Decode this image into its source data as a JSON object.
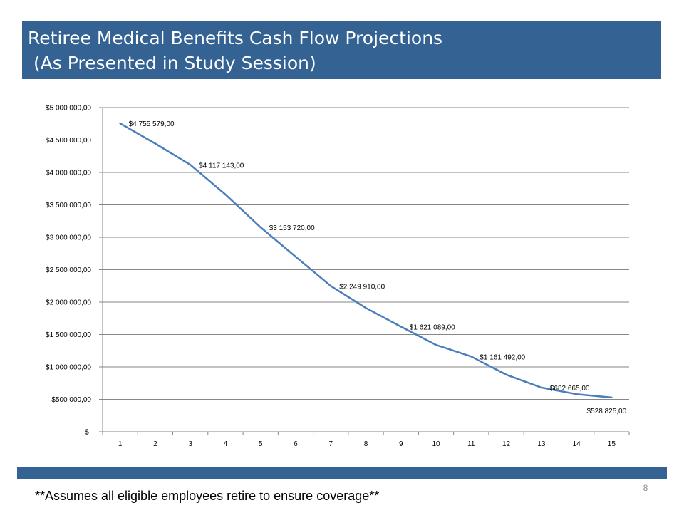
{
  "slide": {
    "title_line1": "Retiree Medical Benefits Cash Flow Projections",
    "title_line2": " (As Presented in Study Session)",
    "footnote": "**Assumes all eligible employees retire to ensure coverage**",
    "page_number": "8"
  },
  "colors": {
    "title_bar": "#346393",
    "line": "#4A7EBB",
    "gridline": "#868686"
  },
  "chart_data": {
    "type": "line",
    "title": "",
    "xlabel": "",
    "ylabel": "",
    "categories": [
      "1",
      "2",
      "3",
      "4",
      "5",
      "6",
      "7",
      "8",
      "9",
      "10",
      "11",
      "12",
      "13",
      "14",
      "15"
    ],
    "values": [
      4755579,
      4445000,
      4117143,
      3660000,
      3153720,
      2700000,
      2249910,
      1910000,
      1621089,
      1340000,
      1161492,
      880000,
      682665,
      580000,
      528825
    ],
    "data_labels": [
      {
        "index": 0,
        "text": "$4 755 579,00"
      },
      {
        "index": 2,
        "text": "$4 117 143,00"
      },
      {
        "index": 4,
        "text": "$3 153 720,00"
      },
      {
        "index": 6,
        "text": "$2 249 910,00"
      },
      {
        "index": 8,
        "text": "$1 621 089,00"
      },
      {
        "index": 10,
        "text": "$1 161 492,00"
      },
      {
        "index": 12,
        "text": "$682 665,00"
      },
      {
        "index": 14,
        "text": "$528 825,00"
      }
    ],
    "ylim": [
      0,
      5000000
    ],
    "y_ticks": [
      0,
      500000,
      1000000,
      1500000,
      2000000,
      2500000,
      3000000,
      3500000,
      4000000,
      4500000,
      5000000
    ],
    "y_tick_labels": [
      "$-",
      "$500 000,00",
      "$1 000 000,00",
      "$1 500 000,00",
      "$2 000 000,00",
      "$2 500 000,00",
      "$3 000 000,00",
      "$3 500 000,00",
      "$4 000 000,00",
      "$4 500 000,00",
      "$5 000 000,00"
    ],
    "grid": true,
    "legend": "none"
  }
}
